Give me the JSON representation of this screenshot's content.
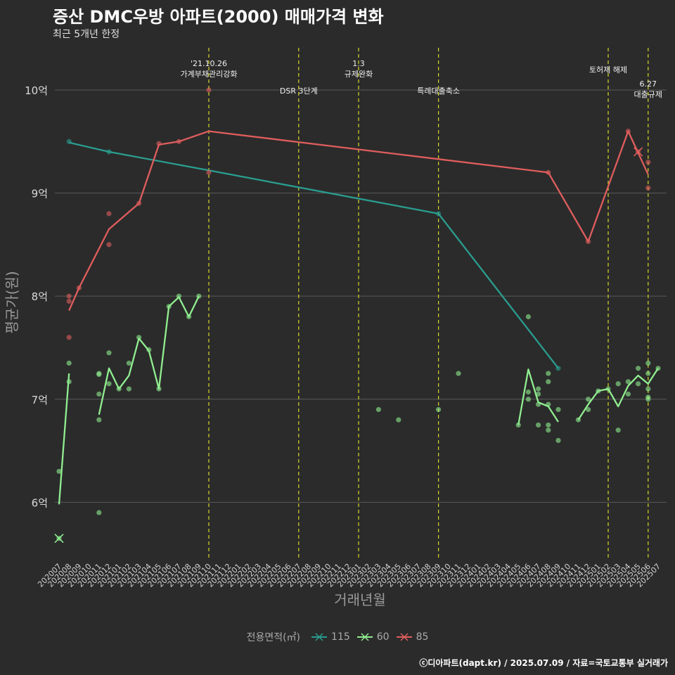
{
  "title": "증산 DMC우방 아파트(2000) 매매가격 변화",
  "subtitle": "최근 5개년 한정",
  "caption": "ⓒ디아파트(dapt.kr) / 2025.07.09 / 자료=국토교통부 실거래가",
  "legend": {
    "title": "전용면적(㎡)",
    "items": [
      {
        "label": "115",
        "color": "#2a9d8f"
      },
      {
        "label": "60",
        "color": "#90ee90"
      },
      {
        "label": "85",
        "color": "#e05d5d"
      }
    ]
  },
  "chart_data": {
    "type": "line",
    "xlabel": "거래년월",
    "ylabel": "평균가(원)",
    "ylim": [
      5.45,
      10.45
    ],
    "y_ticks": [
      {
        "value": 6,
        "label": "6억"
      },
      {
        "value": 7,
        "label": "7억"
      },
      {
        "value": 8,
        "label": "8억"
      },
      {
        "value": 9,
        "label": "9억"
      },
      {
        "value": 10,
        "label": "10억"
      }
    ],
    "categories": [
      "202007",
      "202008",
      "202009",
      "202010",
      "202011",
      "202012",
      "202101",
      "202102",
      "202103",
      "202104",
      "202105",
      "202106",
      "202107",
      "202108",
      "202109",
      "202110",
      "202111",
      "202112",
      "202201",
      "202202",
      "202203",
      "202204",
      "202205",
      "202206",
      "202207",
      "202208",
      "202209",
      "202210",
      "202211",
      "202212",
      "202301",
      "202302",
      "202303",
      "202304",
      "202305",
      "202306",
      "202307",
      "202308",
      "202309",
      "202310",
      "202311",
      "202312",
      "202401",
      "202402",
      "202403",
      "202404",
      "202405",
      "202406",
      "202407",
      "202408",
      "202409",
      "202410",
      "202411",
      "202412",
      "202501",
      "202502",
      "202503",
      "202504",
      "202505",
      "202506",
      "202507"
    ],
    "events": [
      {
        "x": "202110",
        "label": "'21.10.26\n가계부채관리강화",
        "label_row": 1
      },
      {
        "x": "202207",
        "label": "DSR 3단계",
        "label_row": 3
      },
      {
        "x": "202301",
        "label": "1.3\n규제완화",
        "label_row": 1
      },
      {
        "x": "202309",
        "label": "특례대출축소",
        "label_row": 3
      },
      {
        "x": "202502",
        "label": "토허제 해제",
        "label_row": 2
      },
      {
        "x": "202506",
        "label": "6.27\n대출규제",
        "label_row": 4
      }
    ],
    "grid": true,
    "series": [
      {
        "name": "115",
        "color": "#2a9d8f",
        "line": [
          [
            "202008",
            9.49
          ],
          [
            "202012",
            9.4
          ],
          [
            "202110",
            9.22
          ],
          [
            "202309",
            8.8
          ],
          [
            "202409",
            7.3
          ]
        ],
        "points": [
          [
            "202008",
            9.5
          ],
          [
            "202012",
            9.4
          ],
          [
            "202309",
            8.8
          ],
          [
            "202409",
            7.3
          ]
        ],
        "cancelled": []
      },
      {
        "name": "60",
        "color": "#90ee90",
        "line": [
          [
            [
              "202007",
              5.98
            ],
            [
              "202008",
              7.25
            ]
          ],
          [
            [
              "202011",
              6.85
            ],
            [
              "202012",
              7.3
            ],
            [
              "202101",
              7.1
            ],
            [
              "202102",
              7.23
            ],
            [
              "202103",
              7.59
            ],
            [
              "202104",
              7.47
            ],
            [
              "202105",
              7.1
            ],
            [
              "202106",
              7.9
            ],
            [
              "202107",
              7.99
            ],
            [
              "202108",
              7.8
            ],
            [
              "202109",
              8.0
            ]
          ],
          [
            [
              "202405",
              6.75
            ],
            [
              "202406",
              7.29
            ],
            [
              "202407",
              6.97
            ],
            [
              "202408",
              6.93
            ],
            [
              "202409",
              6.78
            ]
          ],
          [
            [
              "202411",
              6.8
            ],
            [
              "202412",
              6.95
            ],
            [
              "202501",
              7.08
            ],
            [
              "202502",
              7.1
            ],
            [
              "202503",
              6.93
            ],
            [
              "202504",
              7.13
            ],
            [
              "202505",
              7.23
            ],
            [
              "202506",
              7.15
            ],
            [
              "202507",
              7.3
            ]
          ]
        ],
        "points": [
          [
            "202007",
            6.3
          ],
          [
            "202008",
            7.35
          ],
          [
            "202008",
            7.17
          ],
          [
            "202011",
            7.25
          ],
          [
            "202011",
            7.24
          ],
          [
            "202011",
            7.05
          ],
          [
            "202011",
            6.8
          ],
          [
            "202011",
            5.9
          ],
          [
            "202012",
            7.45
          ],
          [
            "202012",
            7.15
          ],
          [
            "202101",
            7.1
          ],
          [
            "202102",
            7.35
          ],
          [
            "202102",
            7.1
          ],
          [
            "202103",
            7.6
          ],
          [
            "202104",
            7.48
          ],
          [
            "202105",
            7.1
          ],
          [
            "202106",
            7.9
          ],
          [
            "202107",
            8.0
          ],
          [
            "202108",
            7.8
          ],
          [
            "202109",
            8.0
          ],
          [
            "202303",
            6.9
          ],
          [
            "202305",
            6.8
          ],
          [
            "202309",
            6.9
          ],
          [
            "202311",
            7.25
          ],
          [
            "202405",
            6.75
          ],
          [
            "202406",
            7.8
          ],
          [
            "202406",
            7.07
          ],
          [
            "202406",
            7.0
          ],
          [
            "202407",
            7.1
          ],
          [
            "202407",
            7.05
          ],
          [
            "202407",
            6.95
          ],
          [
            "202407",
            6.75
          ],
          [
            "202408",
            7.25
          ],
          [
            "202408",
            7.17
          ],
          [
            "202408",
            6.95
          ],
          [
            "202408",
            6.75
          ],
          [
            "202408",
            6.7
          ],
          [
            "202409",
            6.9
          ],
          [
            "202409",
            6.6
          ],
          [
            "202411",
            6.8
          ],
          [
            "202412",
            7.0
          ],
          [
            "202412",
            6.9
          ],
          [
            "202501",
            7.08
          ],
          [
            "202502",
            7.1
          ],
          [
            "202503",
            7.15
          ],
          [
            "202503",
            6.7
          ],
          [
            "202504",
            7.17
          ],
          [
            "202504",
            7.05
          ],
          [
            "202505",
            7.3
          ],
          [
            "202505",
            7.15
          ],
          [
            "202506",
            7.35
          ],
          [
            "202506",
            7.25
          ],
          [
            "202506",
            7.1
          ],
          [
            "202506",
            7.0
          ],
          [
            "202506",
            7.02
          ],
          [
            "202507",
            7.3
          ]
        ],
        "cancelled": [
          [
            "202007",
            5.65
          ]
        ]
      },
      {
        "name": "85",
        "color": "#e05d5d",
        "line": [
          [
            "202008",
            7.86
          ],
          [
            "202009",
            8.08
          ],
          [
            "202012",
            8.65
          ],
          [
            "202103",
            8.9
          ],
          [
            "202105",
            9.47
          ],
          [
            "202107",
            9.5
          ],
          [
            "202110",
            9.6
          ],
          [
            "202408",
            9.2
          ],
          [
            "202412",
            8.53
          ],
          [
            "202504",
            9.6
          ],
          [
            "202506",
            9.18
          ]
        ],
        "points": [
          [
            "202008",
            8.0
          ],
          [
            "202008",
            7.95
          ],
          [
            "202008",
            7.6
          ],
          [
            "202009",
            8.08
          ],
          [
            "202012",
            8.8
          ],
          [
            "202012",
            8.5
          ],
          [
            "202103",
            8.9
          ],
          [
            "202105",
            9.48
          ],
          [
            "202107",
            9.5
          ],
          [
            "202110",
            10.0
          ],
          [
            "202110",
            9.2
          ],
          [
            "202408",
            9.2
          ],
          [
            "202412",
            8.53
          ],
          [
            "202504",
            9.6
          ],
          [
            "202506",
            9.3
          ],
          [
            "202506",
            9.05
          ]
        ],
        "cancelled": [
          [
            "202505",
            9.4
          ]
        ]
      }
    ]
  }
}
